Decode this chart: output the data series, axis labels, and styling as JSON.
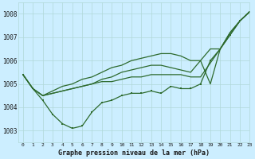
{
  "title": "Graphe pression niveau de la mer (hPa)",
  "background_color": "#cceeff",
  "grid_color": "#b0d8d8",
  "line_color": "#2d6a2d",
  "xlim": [
    -0.5,
    23
  ],
  "ylim": [
    1002.5,
    1008.5
  ],
  "yticks": [
    1003,
    1004,
    1005,
    1006,
    1007,
    1008
  ],
  "xticks": [
    0,
    1,
    2,
    3,
    4,
    5,
    6,
    7,
    8,
    9,
    10,
    11,
    12,
    13,
    14,
    15,
    16,
    17,
    18,
    19,
    20,
    21,
    22,
    23
  ],
  "series": [
    {
      "x": [
        0,
        1,
        2,
        3,
        4,
        5,
        6,
        7,
        8,
        9,
        10,
        11,
        12,
        13,
        14,
        15,
        16,
        17,
        18,
        19,
        20,
        21,
        22,
        23
      ],
      "y": [
        1005.4,
        1004.8,
        1004.3,
        1003.7,
        1003.3,
        1003.1,
        1003.2,
        1003.8,
        1004.2,
        1004.3,
        1004.5,
        1004.6,
        1004.6,
        1004.7,
        1004.6,
        1004.9,
        1004.8,
        1004.8,
        1005.0,
        1006.0,
        1006.5,
        1007.1,
        1007.7,
        1008.1
      ],
      "has_markers": true
    },
    {
      "x": [
        0,
        1,
        2,
        3,
        4,
        5,
        6,
        7,
        8,
        9,
        10,
        11,
        12,
        13,
        14,
        15,
        16,
        17,
        18,
        19,
        20,
        21,
        22,
        23
      ],
      "y": [
        1005.4,
        1004.8,
        1004.5,
        1004.6,
        1004.7,
        1004.8,
        1004.9,
        1005.0,
        1005.1,
        1005.1,
        1005.2,
        1005.3,
        1005.3,
        1005.4,
        1005.4,
        1005.4,
        1005.4,
        1005.3,
        1005.3,
        1005.9,
        1006.5,
        1007.1,
        1007.7,
        1008.1
      ],
      "has_markers": false
    },
    {
      "x": [
        0,
        1,
        2,
        3,
        4,
        5,
        6,
        7,
        8,
        9,
        10,
        11,
        12,
        13,
        14,
        15,
        16,
        17,
        18,
        19,
        20,
        21,
        22,
        23
      ],
      "y": [
        1005.4,
        1004.8,
        1004.5,
        1004.6,
        1004.7,
        1004.8,
        1004.9,
        1005.0,
        1005.2,
        1005.3,
        1005.5,
        1005.6,
        1005.7,
        1005.8,
        1005.8,
        1005.7,
        1005.6,
        1005.5,
        1006.0,
        1005.0,
        1006.5,
        1007.2,
        1007.7,
        1008.1
      ],
      "has_markers": false
    },
    {
      "x": [
        0,
        1,
        2,
        3,
        4,
        5,
        6,
        7,
        8,
        9,
        10,
        11,
        12,
        13,
        14,
        15,
        16,
        17,
        18,
        19,
        20,
        21,
        22,
        23
      ],
      "y": [
        1005.4,
        1004.8,
        1004.5,
        1004.7,
        1004.9,
        1005.0,
        1005.2,
        1005.3,
        1005.5,
        1005.7,
        1005.8,
        1006.0,
        1006.1,
        1006.2,
        1006.3,
        1006.3,
        1006.2,
        1006.0,
        1006.0,
        1006.5,
        1006.5,
        1007.2,
        1007.7,
        1008.1
      ],
      "has_markers": false
    }
  ]
}
